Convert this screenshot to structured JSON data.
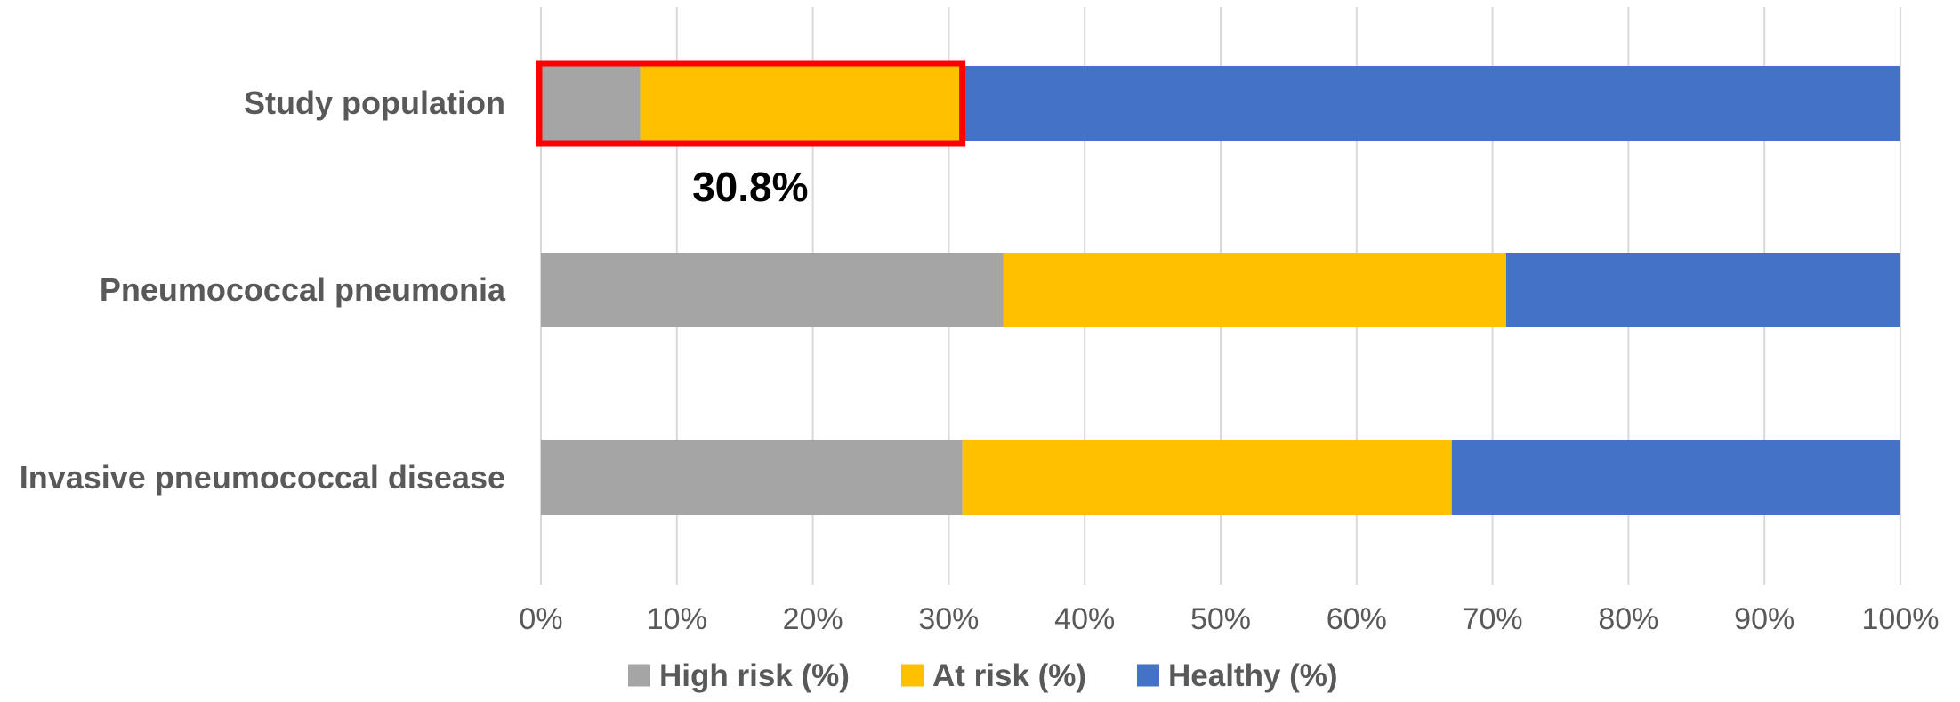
{
  "chart_data": {
    "type": "bar",
    "orientation": "horizontal",
    "stacked": "100%",
    "categories": [
      "Study population",
      "Pneumococcal pneumonia",
      "Invasive pneumococcal disease"
    ],
    "series": [
      {
        "name": "High risk (%)",
        "values": [
          7.3,
          34,
          31
        ],
        "color": "#A5A5A5"
      },
      {
        "name": "At risk (%)",
        "values": [
          23.5,
          37,
          36
        ],
        "color": "#FFC000"
      },
      {
        "name": "Healthy (%)",
        "values": [
          69.2,
          29,
          33
        ],
        "color": "#4472C4"
      }
    ],
    "xticks": [
      "0%",
      "10%",
      "20%",
      "30%",
      "40%",
      "50%",
      "60%",
      "70%",
      "80%",
      "90%",
      "100%"
    ],
    "xlim": [
      0,
      100
    ],
    "grid": "vertical",
    "legend_position": "bottom",
    "annotation": {
      "text": "30.8%",
      "category": "Study population",
      "value": 30.8,
      "highlight_color": "#FF0000"
    }
  }
}
